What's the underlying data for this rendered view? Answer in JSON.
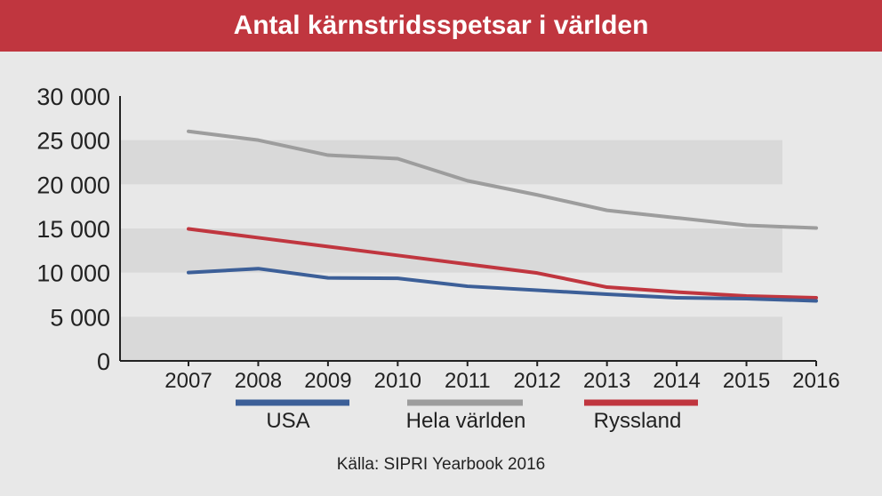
{
  "title": "Antal kärnstridsspetsar i världen",
  "source": "Källa: SIPRI Yearbook 2016",
  "chart_data": {
    "type": "line",
    "title": "Antal kärnstridsspetsar i världen",
    "x": [
      "2007",
      "2008",
      "2009",
      "2010",
      "2011",
      "2012",
      "2013",
      "2014",
      "2015",
      "2016"
    ],
    "ylim": [
      0,
      30000
    ],
    "ytick_labels": [
      "30 000",
      "25 000",
      "20 000",
      "15 000",
      "10 000",
      "5 000",
      "0"
    ],
    "ytick_values": [
      30000,
      25000,
      20000,
      15000,
      10000,
      5000,
      0
    ],
    "grid": "alternating horizontal bands",
    "legend_placement": "bottom",
    "series": [
      {
        "name": "USA",
        "color": "#3c5f98",
        "values": [
          10000,
          10450,
          9400,
          9350,
          8450,
          8000,
          7550,
          7150,
          7050,
          6800
        ]
      },
      {
        "name": "Hela världen",
        "color": "#9d9d9d",
        "values": [
          26000,
          25000,
          23300,
          22900,
          20400,
          18800,
          17050,
          16200,
          15350,
          15050
        ]
      },
      {
        "name": "Ryssland",
        "color": "#c0363f",
        "values": [
          14950,
          13950,
          12950,
          11950,
          10950,
          9950,
          8350,
          7800,
          7350,
          7150
        ]
      }
    ]
  }
}
